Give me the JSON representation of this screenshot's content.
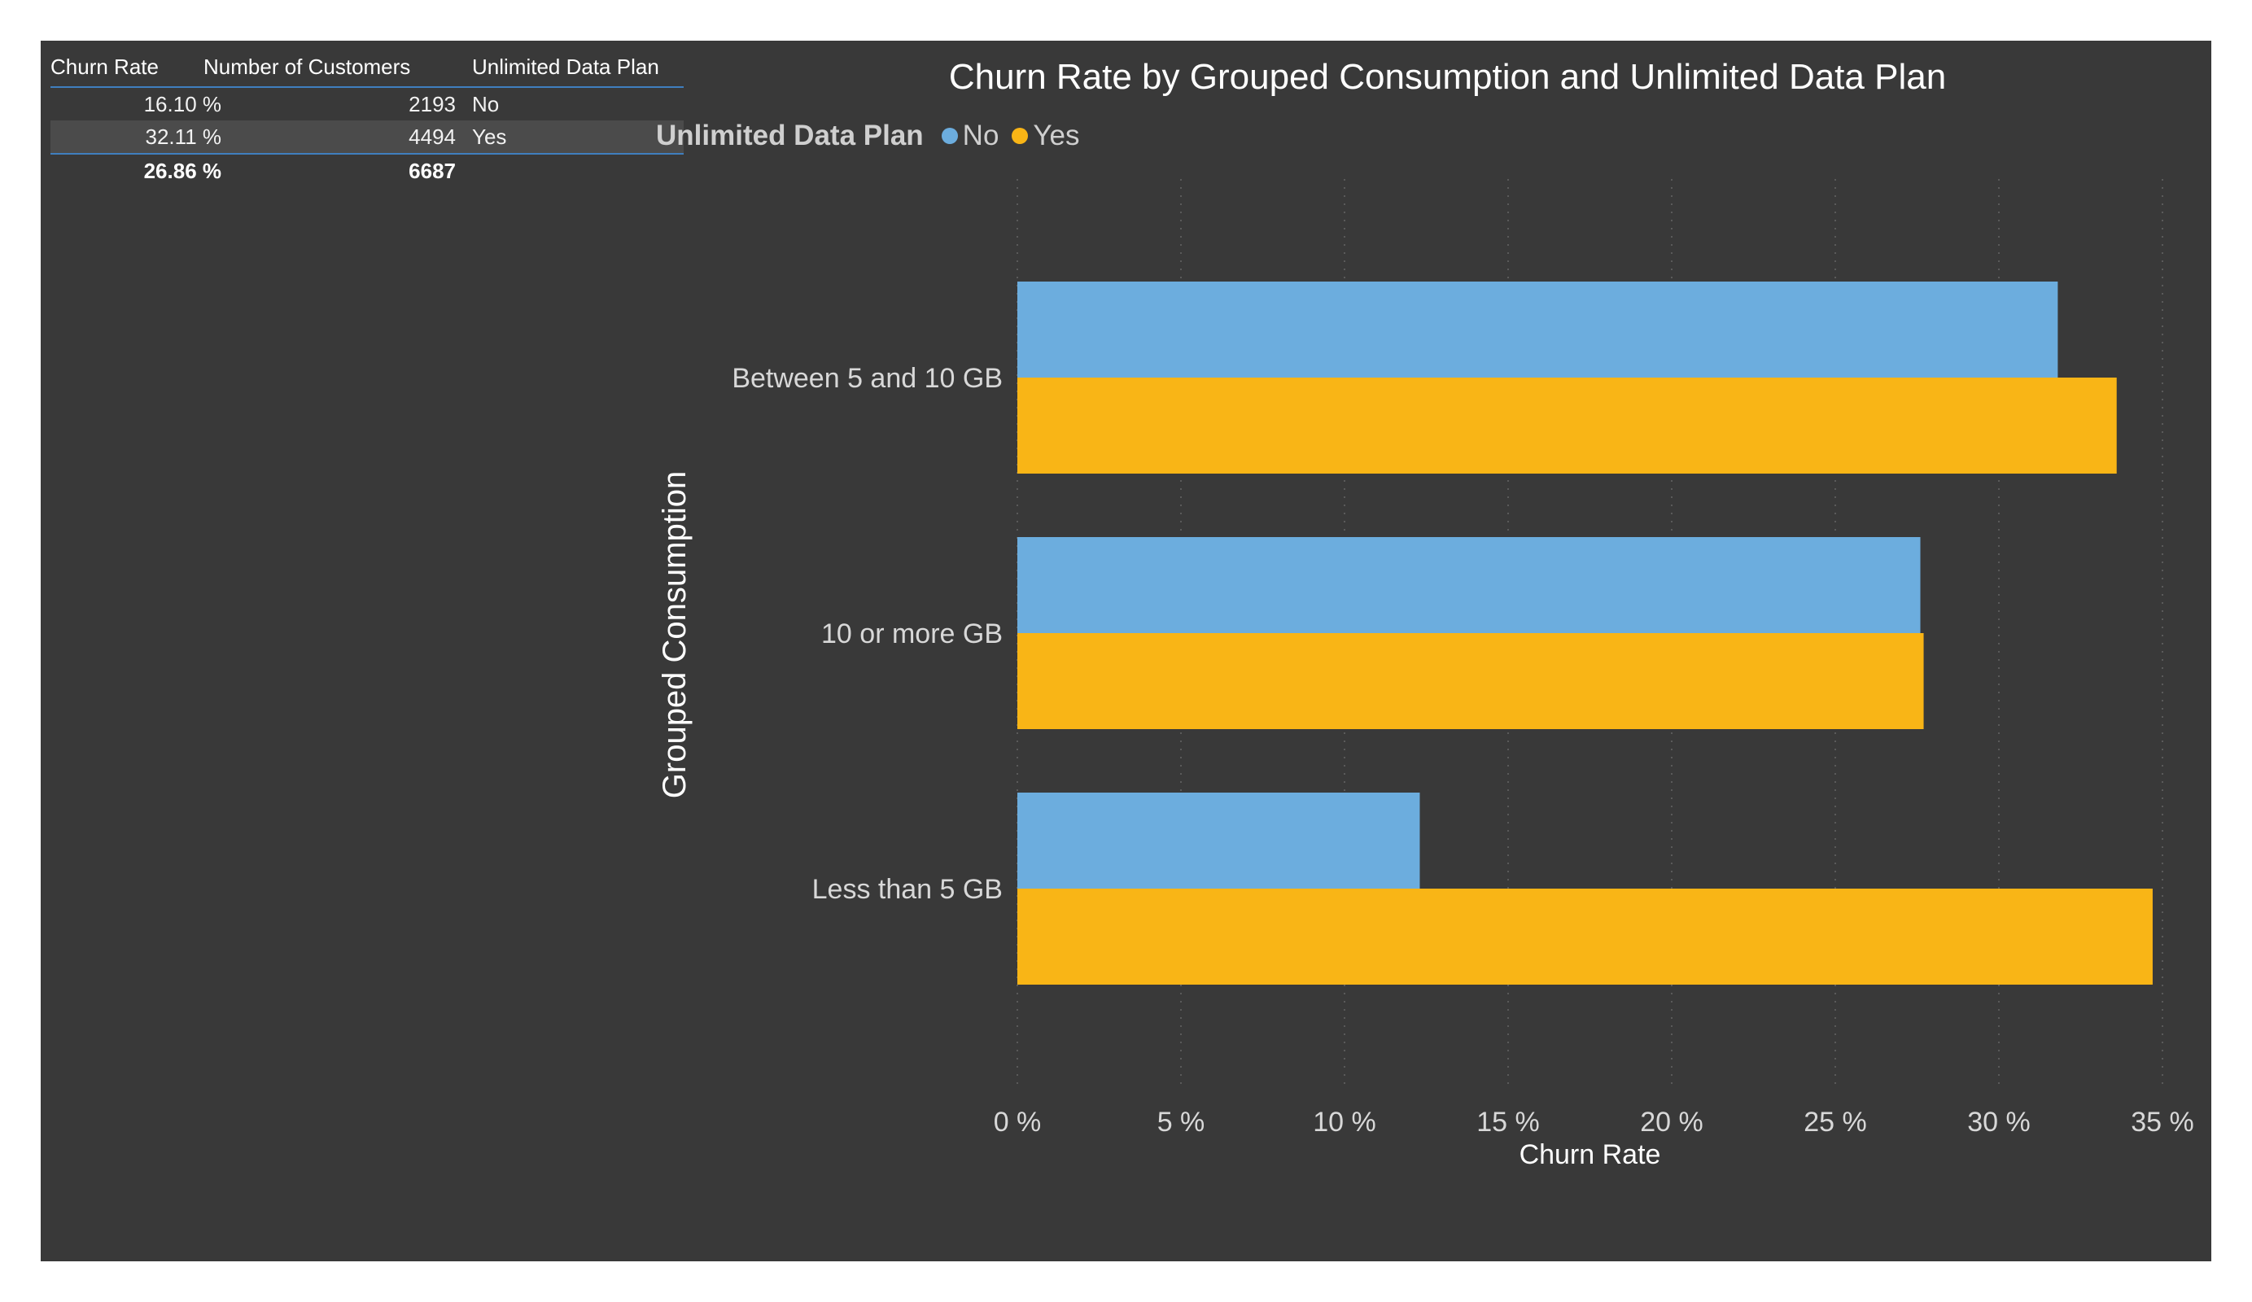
{
  "table": {
    "headers": [
      "Churn Rate",
      "Number of Customers",
      "Unlimited Data Plan"
    ],
    "rows": [
      {
        "churn_rate": "16.10 %",
        "customers": "2193",
        "plan": "No"
      },
      {
        "churn_rate": "32.11 %",
        "customers": "4494",
        "plan": "Yes"
      }
    ],
    "total": {
      "churn_rate": "26.86 %",
      "customers": "6687",
      "plan": ""
    }
  },
  "chart_data": {
    "type": "bar",
    "orientation": "horizontal",
    "title": "Churn Rate by Grouped Consumption and Unlimited Data Plan",
    "legend_title": "Unlimited Data Plan",
    "legend_position": "top-left",
    "xlabel": "Churn Rate",
    "ylabel": "Grouped Consumption",
    "categories": [
      "Between 5 and 10 GB",
      "10 or more GB",
      "Less than 5 GB"
    ],
    "series": [
      {
        "name": "No",
        "color": "#6cadde",
        "values": [
          31.8,
          27.6,
          12.3
        ]
      },
      {
        "name": "Yes",
        "color": "#f9b516",
        "values": [
          33.6,
          27.7,
          34.7
        ]
      }
    ],
    "xlim": [
      0,
      35
    ],
    "xticks": [
      0,
      5,
      10,
      15,
      20,
      25,
      30,
      35
    ],
    "xtick_labels": [
      "0 %",
      "5 %",
      "10 %",
      "15 %",
      "20 %",
      "25 %",
      "30 %",
      "35 %"
    ],
    "grid": "vertical dotted"
  },
  "colors": {
    "background": "#393939",
    "no": "#6cadde",
    "yes": "#f9b516",
    "table_accent": "#3f7fbf"
  }
}
